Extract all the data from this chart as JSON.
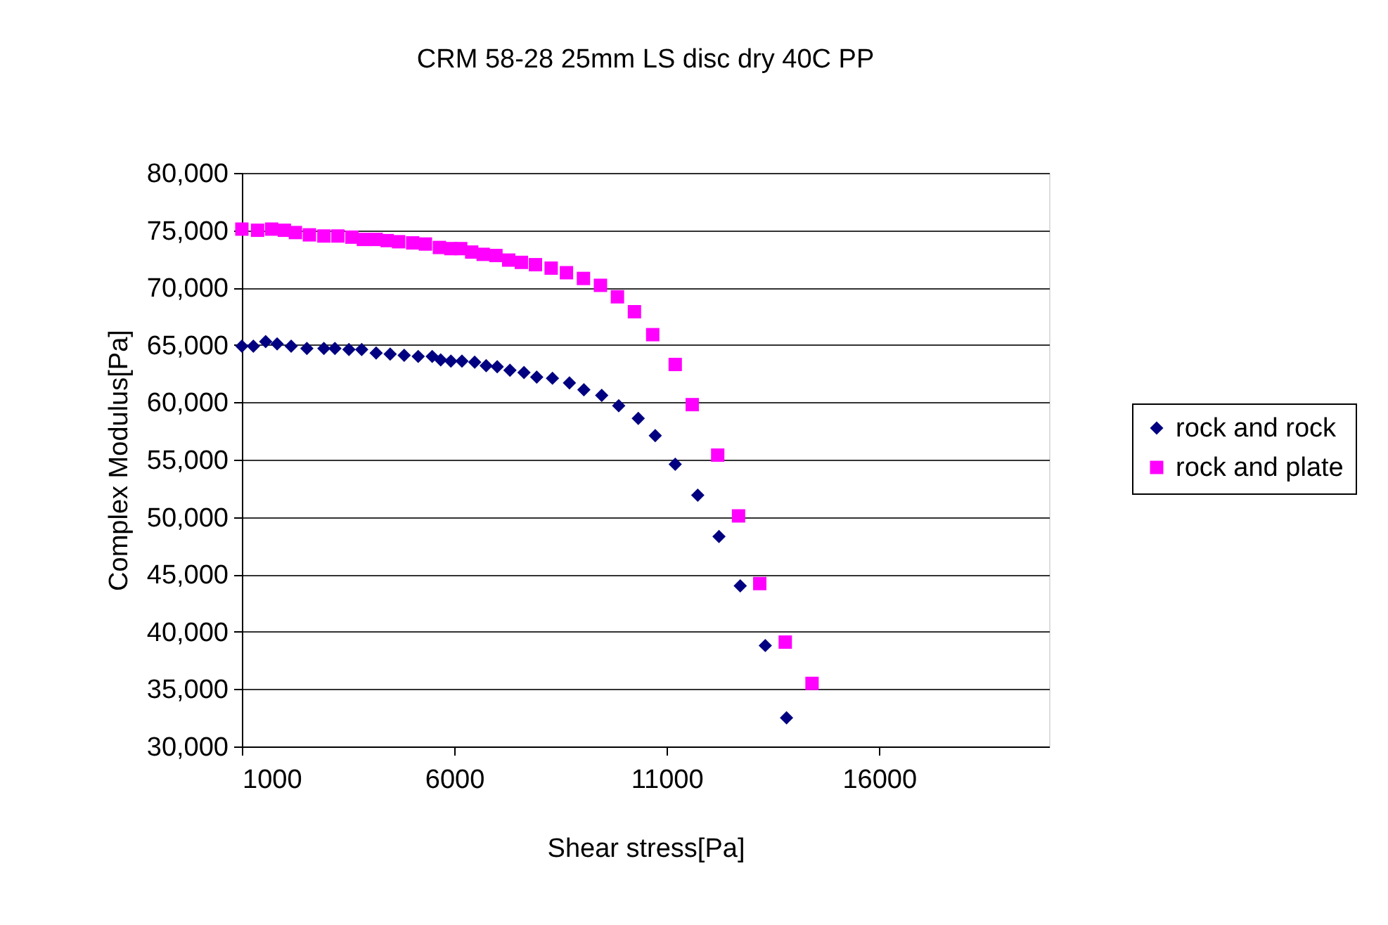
{
  "chart_data": {
    "type": "scatter",
    "title": "CRM 58-28 25mm LS disc dry 40C PP",
    "xlabel": "Shear stress[Pa]",
    "ylabel": "Complex Modulus[Pa]",
    "xlim": [
      1000,
      20000
    ],
    "xticks": [
      1000,
      6000,
      11000,
      16000
    ],
    "ylim": [
      30000,
      80000
    ],
    "yticks": [
      {
        "value": 30000,
        "label": "30,000"
      },
      {
        "value": 35000,
        "label": "35,000"
      },
      {
        "value": 40000,
        "label": "40,000"
      },
      {
        "value": 45000,
        "label": "45,000"
      },
      {
        "value": 50000,
        "label": "50,000"
      },
      {
        "value": 55000,
        "label": "55,000"
      },
      {
        "value": 60000,
        "label": "60,000"
      },
      {
        "value": 65000,
        "label": "65,000"
      },
      {
        "value": 70000,
        "label": "70,000"
      },
      {
        "value": 75000,
        "label": "75,000"
      },
      {
        "value": 80000,
        "label": "80,000"
      }
    ],
    "grid": "y",
    "legend": "right",
    "series": [
      {
        "name": "rock and rock",
        "color": "#000080",
        "marker": "diamond",
        "x": [
          1000,
          1270,
          1560,
          1830,
          2160,
          2530,
          2930,
          3190,
          3520,
          3820,
          4160,
          4490,
          4820,
          5150,
          5480,
          5680,
          5920,
          6180,
          6480,
          6750,
          7010,
          7310,
          7640,
          7940,
          8310,
          8710,
          9050,
          9470,
          9870,
          10330,
          10730,
          11200,
          11730,
          12230,
          12730,
          13320,
          13820
        ],
        "values": [
          64900,
          64900,
          65300,
          65100,
          64900,
          64700,
          64700,
          64700,
          64600,
          64600,
          64300,
          64200,
          64100,
          64000,
          64000,
          63700,
          63600,
          63600,
          63500,
          63200,
          63100,
          62800,
          62600,
          62200,
          62100,
          61700,
          61100,
          60600,
          59700,
          58600,
          57100,
          54600,
          51900,
          48300,
          44000,
          38800,
          32500
        ]
      },
      {
        "name": "rock and plate",
        "color": "#ff00ff",
        "marker": "square",
        "x": [
          1000,
          1370,
          1700,
          2000,
          2260,
          2590,
          2930,
          3260,
          3590,
          3860,
          4160,
          4420,
          4690,
          5020,
          5320,
          5650,
          5920,
          6150,
          6410,
          6680,
          6980,
          7280,
          7580,
          7910,
          8280,
          8640,
          9040,
          9440,
          9840,
          10240,
          10670,
          11200,
          11600,
          12200,
          12690,
          13190,
          13790,
          14420
        ],
        "values": [
          75100,
          75000,
          75100,
          75000,
          74800,
          74600,
          74500,
          74500,
          74400,
          74200,
          74200,
          74100,
          74000,
          73900,
          73800,
          73500,
          73400,
          73400,
          73100,
          72900,
          72800,
          72400,
          72200,
          72000,
          71700,
          71300,
          70800,
          70200,
          69200,
          67900,
          65900,
          63300,
          59800,
          55400,
          50100,
          44200,
          39100,
          35500
        ]
      }
    ]
  }
}
